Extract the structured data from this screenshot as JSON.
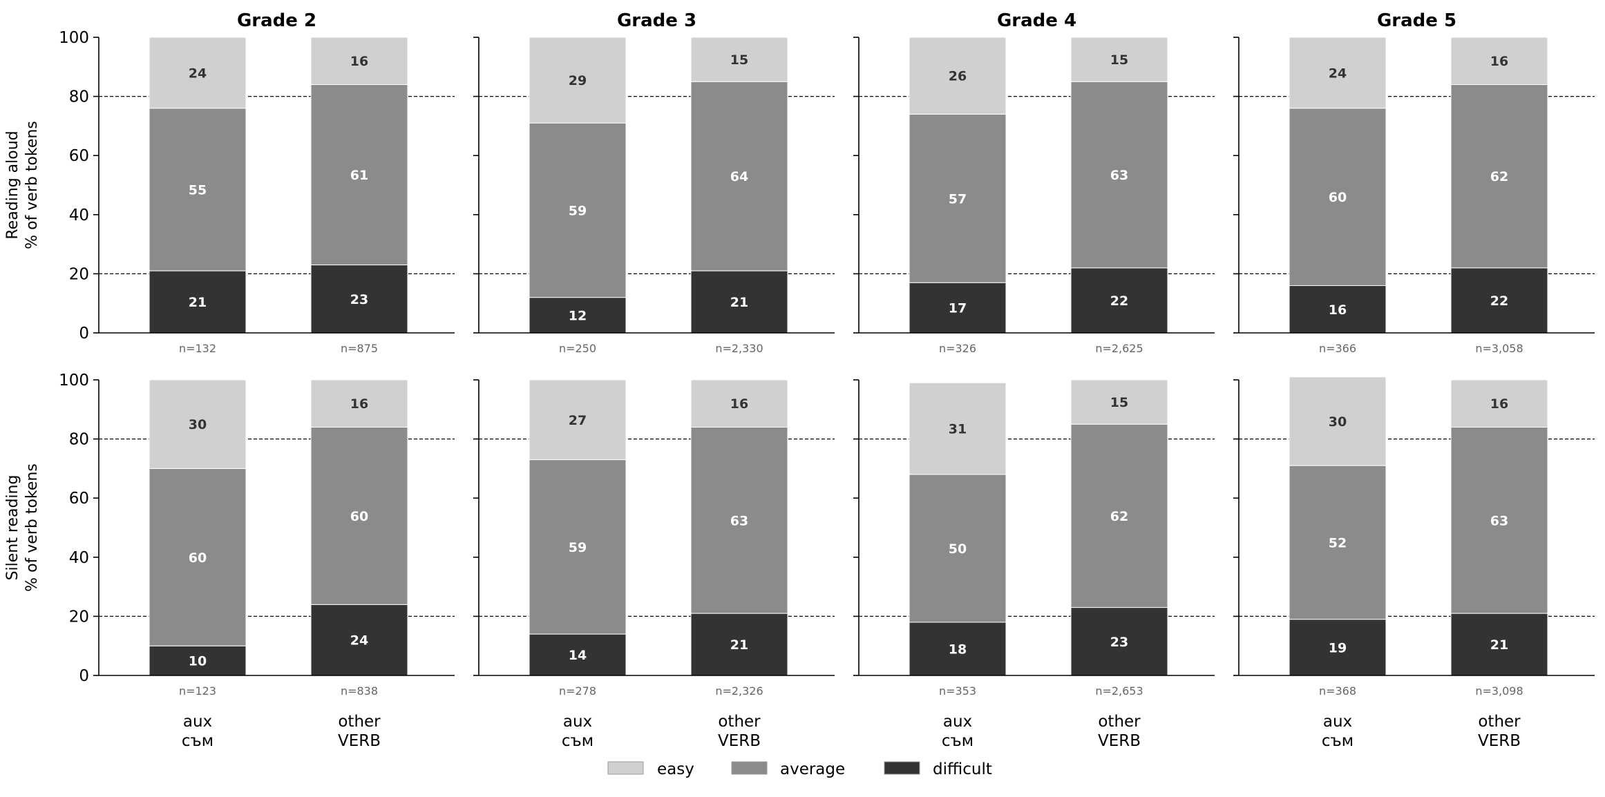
{
  "chart_data": {
    "type": "bar",
    "stacked": true,
    "ylim": [
      0,
      100
    ],
    "yticks": [
      0,
      20,
      40,
      60,
      80,
      100
    ],
    "reference_lines": [
      20,
      80
    ],
    "categories": [
      [
        "aux",
        "съм"
      ],
      [
        "other",
        "VERB"
      ]
    ],
    "columns": [
      "Grade 2",
      "Grade 3",
      "Grade 4",
      "Grade 5"
    ],
    "rows": [
      [
        "Reading aloud",
        "% of verb tokens"
      ],
      [
        "Silent reading",
        "% of verb tokens"
      ]
    ],
    "legend": [
      {
        "name": "easy",
        "color": "#d0d0d0"
      },
      {
        "name": "average",
        "color": "#8b8b8b"
      },
      {
        "name": "difficult",
        "color": "#333333"
      }
    ],
    "panels": [
      [
        {
          "bars": [
            {
              "difficult": 21,
              "average": 55,
              "easy": 24,
              "n": "n=132"
            },
            {
              "difficult": 23,
              "average": 61,
              "easy": 16,
              "n": "n=875"
            }
          ]
        },
        {
          "bars": [
            {
              "difficult": 12,
              "average": 59,
              "easy": 29,
              "n": "n=250"
            },
            {
              "difficult": 21,
              "average": 64,
              "easy": 15,
              "n": "n=2,330"
            }
          ]
        },
        {
          "bars": [
            {
              "difficult": 17,
              "average": 57,
              "easy": 26,
              "n": "n=326"
            },
            {
              "difficult": 22,
              "average": 63,
              "easy": 15,
              "n": "n=2,625"
            }
          ]
        },
        {
          "bars": [
            {
              "difficult": 16,
              "average": 60,
              "easy": 24,
              "n": "n=366"
            },
            {
              "difficult": 22,
              "average": 62,
              "easy": 16,
              "n": "n=3,058"
            }
          ]
        }
      ],
      [
        {
          "bars": [
            {
              "difficult": 10,
              "average": 60,
              "easy": 30,
              "n": "n=123"
            },
            {
              "difficult": 24,
              "average": 60,
              "easy": 16,
              "n": "n=838"
            }
          ]
        },
        {
          "bars": [
            {
              "difficult": 14,
              "average": 59,
              "easy": 27,
              "n": "n=278"
            },
            {
              "difficult": 21,
              "average": 63,
              "easy": 16,
              "n": "n=2,326"
            }
          ]
        },
        {
          "bars": [
            {
              "difficult": 18,
              "average": 50,
              "easy": 31,
              "n": "n=353"
            },
            {
              "difficult": 23,
              "average": 62,
              "easy": 15,
              "n": "n=2,653"
            }
          ]
        },
        {
          "bars": [
            {
              "difficult": 19,
              "average": 52,
              "easy": 30,
              "n": "n=368"
            },
            {
              "difficult": 21,
              "average": 63,
              "easy": 16,
              "n": "n=3,098"
            }
          ]
        }
      ]
    ]
  }
}
